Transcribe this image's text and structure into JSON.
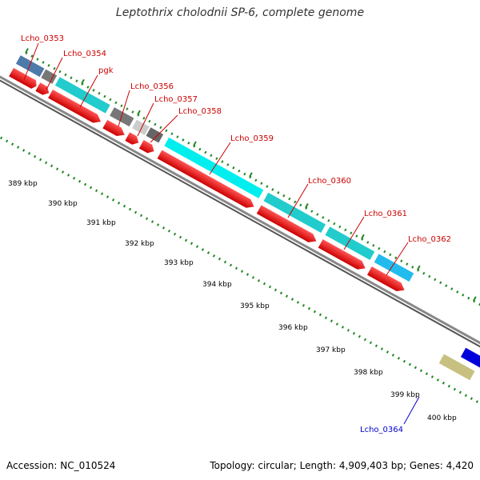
{
  "title": "Leptothrix cholodnii SP-6, complete genome",
  "accession": "Accession: NC_010524",
  "summary": "Topology: circular; Length: 4,909,403 bp; Genes: 4,420",
  "colors": {
    "cds_red": "#ff0000",
    "feature_cyan": "#22cccc",
    "feature_bright_cyan": "#00eeee",
    "feature_sky": "#22bbee",
    "feature_gray": "#777777",
    "feature_light_gray": "#cccccc",
    "feature_steel": "#4d7aa8",
    "feature_blue": "#0000dd",
    "feature_khaki": "#c8c080",
    "dots_green": "#228822",
    "label_red": "#cc0000",
    "label_blue": "#0000cc"
  },
  "kbp_ticks": [
    "389 kbp",
    "390 kbp",
    "391 kbp",
    "392 kbp",
    "393 kbp",
    "394 kbp",
    "395 kbp",
    "396 kbp",
    "397 kbp",
    "398 kbp",
    "399 kbp",
    "400 kbp"
  ],
  "gene_labels": [
    {
      "text": "Lcho_0353",
      "color": "red"
    },
    {
      "text": "Lcho_0354",
      "color": "red"
    },
    {
      "text": "pgk",
      "color": "red"
    },
    {
      "text": "Lcho_0356",
      "color": "red"
    },
    {
      "text": "Lcho_0357",
      "color": "red"
    },
    {
      "text": "Lcho_0358",
      "color": "red"
    },
    {
      "text": "Lcho_0359",
      "color": "red"
    },
    {
      "text": "Lcho_0360",
      "color": "red"
    },
    {
      "text": "Lcho_0361",
      "color": "red"
    },
    {
      "text": "Lcho_0362",
      "color": "red"
    },
    {
      "text": "Lcho_0364",
      "color": "blue"
    }
  ]
}
